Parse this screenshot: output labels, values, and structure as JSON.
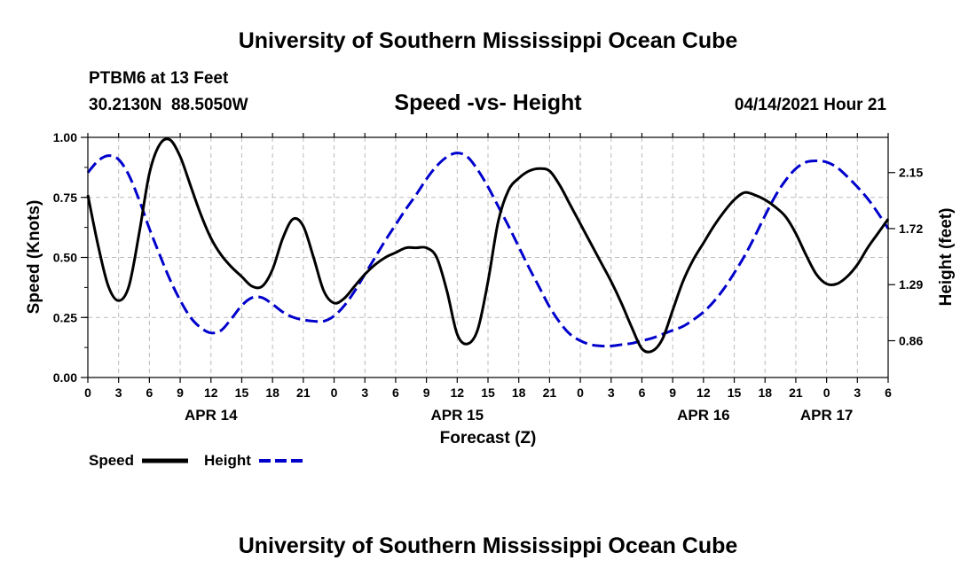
{
  "header": {
    "title": "University of Southern Mississippi Ocean Cube",
    "station": "PTBM6 at 13 Feet",
    "coords": "30.2130N  88.5050W",
    "plot_title": "Speed -vs- Height",
    "datetime": "04/14/2021 Hour 21"
  },
  "footer": {
    "title": "University of Southern Mississippi Ocean Cube"
  },
  "legend": {
    "speed_label": "Speed",
    "height_label": "Height"
  },
  "colors": {
    "speed": "#000000",
    "height": "#0000cc",
    "grid": "#bbbbbb"
  },
  "chart_data": {
    "type": "line",
    "title": "Speed -vs- Height",
    "xlabel": "Forecast (Z)",
    "ylabel": "Speed (Knots)",
    "ylabel_right": "Height (feet)",
    "xlim": [
      0,
      78
    ],
    "ylim": [
      0,
      1
    ],
    "ylim_right": [
      0.578,
      2.42
    ],
    "grid": true,
    "legend_position": "bottom-left",
    "x_ticks": [
      0,
      3,
      6,
      9,
      12,
      15,
      18,
      21,
      24,
      27,
      30,
      33,
      36,
      39,
      42,
      45,
      48,
      51,
      54,
      57,
      60,
      63,
      66,
      69,
      72,
      75,
      78
    ],
    "x_tick_labels": [
      "0",
      "3",
      "6",
      "9",
      "12",
      "15",
      "18",
      "21",
      "0",
      "3",
      "6",
      "9",
      "12",
      "15",
      "18",
      "21",
      "0",
      "3",
      "6",
      "9",
      "12",
      "15",
      "18",
      "21",
      "0",
      "3",
      "6"
    ],
    "y_ticks": [
      0,
      0.25,
      0.5,
      0.75,
      1.0
    ],
    "y_tick_labels": [
      "0.00",
      "0.25",
      "0.50",
      "0.75",
      "1.00"
    ],
    "y_right_ticks": [
      0.86,
      1.29,
      1.72,
      2.15
    ],
    "y_right_tick_labels": [
      "0.86",
      "1.29",
      "1.72",
      "2.15"
    ],
    "date_labels": [
      {
        "x": 12,
        "label": "APR 14"
      },
      {
        "x": 36,
        "label": "APR 15"
      },
      {
        "x": 60,
        "label": "APR 16"
      },
      {
        "x": 72,
        "label": "APR 17"
      }
    ],
    "series": [
      {
        "name": "Speed",
        "axis": "left",
        "style": "solid",
        "x": [
          0,
          1,
          2,
          3,
          4,
          5,
          6,
          7,
          8,
          9,
          10,
          11,
          12,
          13,
          14,
          15,
          16,
          17,
          18,
          19,
          20,
          21,
          22,
          23,
          24,
          25,
          26,
          27,
          28,
          29,
          30,
          31,
          32,
          33,
          34,
          35,
          36,
          37,
          38,
          39,
          40,
          41,
          42,
          43,
          44,
          45,
          46,
          47,
          48,
          49,
          50,
          51,
          52,
          53,
          54,
          55,
          56,
          57,
          58,
          59,
          60,
          61,
          62,
          63,
          64,
          65,
          66,
          67,
          68,
          69,
          70,
          71,
          72,
          73,
          74,
          75,
          76,
          77,
          78
        ],
        "values": [
          0.76,
          0.55,
          0.38,
          0.32,
          0.38,
          0.6,
          0.85,
          0.97,
          0.99,
          0.92,
          0.8,
          0.68,
          0.58,
          0.51,
          0.46,
          0.42,
          0.38,
          0.38,
          0.45,
          0.58,
          0.66,
          0.63,
          0.5,
          0.36,
          0.31,
          0.33,
          0.38,
          0.43,
          0.47,
          0.5,
          0.52,
          0.54,
          0.54,
          0.54,
          0.5,
          0.36,
          0.18,
          0.14,
          0.2,
          0.4,
          0.65,
          0.78,
          0.83,
          0.86,
          0.87,
          0.86,
          0.8,
          0.72,
          0.64,
          0.56,
          0.48,
          0.4,
          0.31,
          0.21,
          0.12,
          0.11,
          0.16,
          0.28,
          0.4,
          0.49,
          0.56,
          0.63,
          0.69,
          0.74,
          0.77,
          0.76,
          0.74,
          0.71,
          0.67,
          0.6,
          0.51,
          0.43,
          0.39,
          0.39,
          0.42,
          0.47,
          0.54,
          0.6,
          0.66
        ]
      },
      {
        "name": "Height",
        "axis": "right",
        "style": "dashed",
        "x": [
          0,
          1,
          2,
          3,
          4,
          5,
          6,
          7,
          8,
          9,
          10,
          11,
          12,
          13,
          14,
          15,
          16,
          17,
          18,
          19,
          20,
          21,
          22,
          23,
          24,
          25,
          26,
          27,
          28,
          29,
          30,
          31,
          32,
          33,
          34,
          35,
          36,
          37,
          38,
          39,
          40,
          41,
          42,
          43,
          44,
          45,
          46,
          47,
          48,
          49,
          50,
          51,
          52,
          53,
          54,
          55,
          56,
          57,
          58,
          59,
          60,
          61,
          62,
          63,
          64,
          65,
          66,
          67,
          68,
          69,
          70,
          71,
          72,
          73,
          74,
          75,
          76,
          77,
          78
        ],
        "values": [
          2.15,
          2.24,
          2.28,
          2.25,
          2.13,
          1.94,
          1.72,
          1.52,
          1.33,
          1.17,
          1.04,
          0.96,
          0.92,
          0.94,
          1.03,
          1.13,
          1.19,
          1.19,
          1.14,
          1.08,
          1.04,
          1.02,
          1.01,
          1.01,
          1.05,
          1.13,
          1.24,
          1.37,
          1.5,
          1.63,
          1.75,
          1.87,
          1.98,
          2.1,
          2.2,
          2.27,
          2.3,
          2.27,
          2.17,
          2.04,
          1.89,
          1.74,
          1.58,
          1.42,
          1.27,
          1.12,
          1.0,
          0.91,
          0.86,
          0.83,
          0.82,
          0.82,
          0.83,
          0.84,
          0.86,
          0.88,
          0.91,
          0.94,
          0.97,
          1.02,
          1.08,
          1.16,
          1.26,
          1.38,
          1.51,
          1.66,
          1.82,
          1.97,
          2.09,
          2.18,
          2.23,
          2.24,
          2.23,
          2.19,
          2.12,
          2.04,
          1.95,
          1.84,
          1.72
        ]
      }
    ]
  }
}
